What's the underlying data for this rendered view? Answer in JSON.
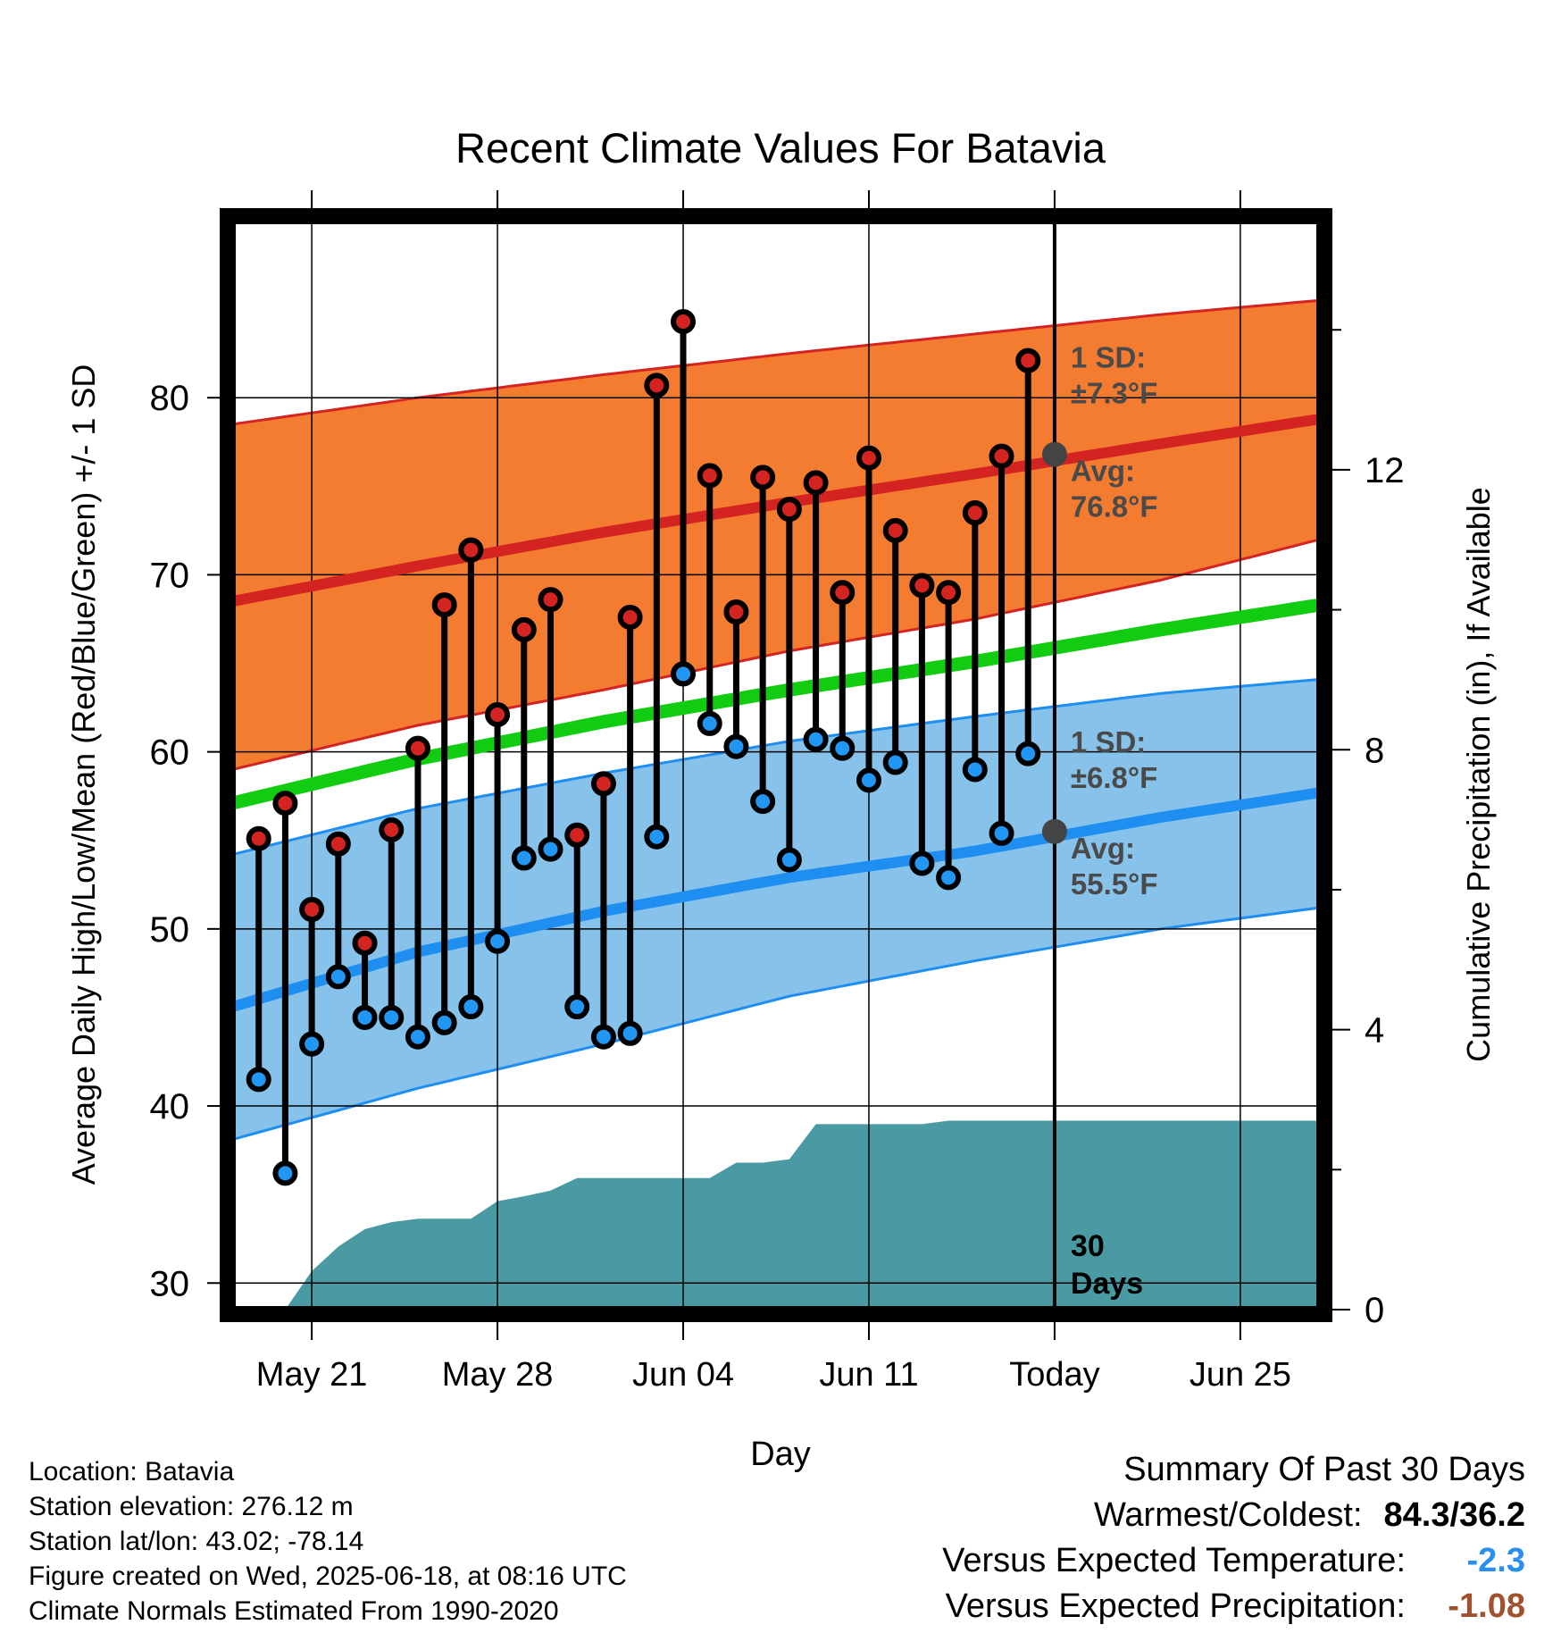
{
  "chart_data": {
    "type": "line",
    "title": "Recent Climate Values For Batavia",
    "xlabel": "Day",
    "ylabel": "Average Daily High/Low/Mean (Red/Blue/Green) +/- 1 SD",
    "y2label": "Cumulative Precipitation (in), If Available",
    "x_tick_labels": [
      "May 21",
      "May 28",
      "Jun 04",
      "Jun 11",
      "Today",
      "Jun 25"
    ],
    "x_tick_days": [
      3,
      10,
      17,
      24,
      31,
      38
    ],
    "xlim": [
      0,
      41
    ],
    "ylim": [
      28.5,
      90
    ],
    "y_ticks": [
      30,
      40,
      50,
      60,
      70,
      80
    ],
    "y2lim": [
      0,
      15.56
    ],
    "y2_ticks": [
      0,
      4,
      8,
      12
    ],
    "observations": {
      "days": [
        1,
        2,
        3,
        4,
        5,
        6,
        7,
        8,
        9,
        10,
        11,
        12,
        13,
        14,
        15,
        16,
        17,
        18,
        19,
        20,
        21,
        22,
        23,
        24,
        25,
        26,
        27,
        28,
        29,
        30
      ],
      "highs": [
        55.1,
        57.1,
        51.1,
        54.8,
        49.2,
        55.6,
        60.2,
        68.3,
        71.4,
        62.1,
        66.9,
        68.6,
        55.3,
        58.2,
        67.6,
        80.7,
        84.3,
        75.6,
        67.9,
        75.5,
        73.7,
        75.2,
        69.0,
        76.6,
        72.5,
        69.4,
        69.0,
        73.5,
        76.7,
        82.1
      ],
      "lows": [
        41.5,
        36.2,
        43.5,
        47.3,
        45.0,
        45.0,
        43.9,
        44.7,
        45.6,
        49.3,
        54.0,
        54.5,
        45.6,
        43.9,
        44.1,
        55.2,
        64.4,
        61.6,
        60.3,
        57.2,
        53.9,
        60.7,
        60.2,
        58.4,
        59.4,
        53.7,
        52.9,
        59.0,
        55.4,
        59.9
      ]
    },
    "normals": {
      "days": [
        0,
        7,
        14,
        21,
        28,
        35,
        41
      ],
      "avg_high": [
        68.5,
        70.5,
        72.4,
        74.1,
        75.7,
        77.4,
        78.8
      ],
      "avg_low": [
        45.6,
        48.7,
        51.0,
        52.9,
        54.4,
        56.3,
        57.7
      ],
      "avg_mean": [
        57.1,
        59.6,
        61.7,
        63.5,
        65.1,
        66.9,
        68.3
      ],
      "high_upper": [
        78.5,
        80.0,
        81.3,
        82.5,
        83.6,
        84.7,
        85.5
      ],
      "high_lower": [
        59.0,
        61.5,
        63.5,
        65.7,
        67.5,
        69.7,
        72.0
      ],
      "low_upper": [
        54.2,
        56.8,
        58.8,
        60.6,
        62.0,
        63.3,
        64.1
      ],
      "low_lower": [
        38.1,
        41.0,
        43.5,
        46.2,
        48.2,
        50.0,
        51.2
      ]
    },
    "precipitation": {
      "days": [
        0,
        2,
        3,
        4,
        5,
        6,
        7,
        8,
        9,
        10,
        11,
        12,
        13,
        14,
        15,
        16,
        17,
        18,
        19,
        20,
        21,
        22,
        23,
        24,
        25,
        26,
        27,
        28,
        29,
        30,
        31,
        41
      ],
      "cumulative": [
        0,
        0,
        0.55,
        0.9,
        1.15,
        1.25,
        1.3,
        1.3,
        1.3,
        1.55,
        1.62,
        1.7,
        1.88,
        1.88,
        1.88,
        1.88,
        1.88,
        1.88,
        2.1,
        2.1,
        2.15,
        2.65,
        2.65,
        2.65,
        2.65,
        2.65,
        2.7,
        2.7,
        2.7,
        2.7,
        2.7,
        2.7
      ]
    },
    "today_day": 31,
    "today_markers": {
      "high_avg": 76.8,
      "low_avg": 55.5
    },
    "annotations": {
      "high_sd_line1": "1 SD:",
      "high_sd_line2": "±7.3°F",
      "high_avg_line1": "Avg:",
      "high_avg_line2": "76.8°F",
      "low_sd_line1": "1 SD:",
      "low_sd_line2": "±6.8°F",
      "low_avg_line1": "Avg:",
      "low_avg_line2": "55.5°F",
      "days_line1": "30",
      "days_line2": "Days"
    },
    "colors": {
      "high_band": "#f47c30",
      "high_line": "#d42422",
      "low_band": "#86c2ea",
      "low_line": "#1e8ef0",
      "mean_line": "#11cc11",
      "precip": "#4a9aa4",
      "high_marker": "#d42422",
      "low_marker": "#2196f3",
      "annotation": "#4a4a4a"
    },
    "grid": true
  },
  "info": {
    "location": "Location: Batavia",
    "elevation": "Station elevation: 276.12 m",
    "latlon": "Station lat/lon: 43.02; -78.14",
    "created": "Figure created on Wed, 2025-06-18, at 08:16 UTC",
    "normals": "Climate Normals Estimated From 1990-2020"
  },
  "summary": {
    "title": "Summary Of Past 30 Days",
    "warm_label": "Warmest/Coldest:",
    "warm_value": "84.3/36.2",
    "temp_label": "Versus Expected Temperature:",
    "temp_value": "-2.3",
    "temp_color": "#2a8ef0",
    "precip_label": "Versus Expected Precipitation:",
    "precip_value": "-1.08",
    "precip_color": "#a0522d"
  }
}
